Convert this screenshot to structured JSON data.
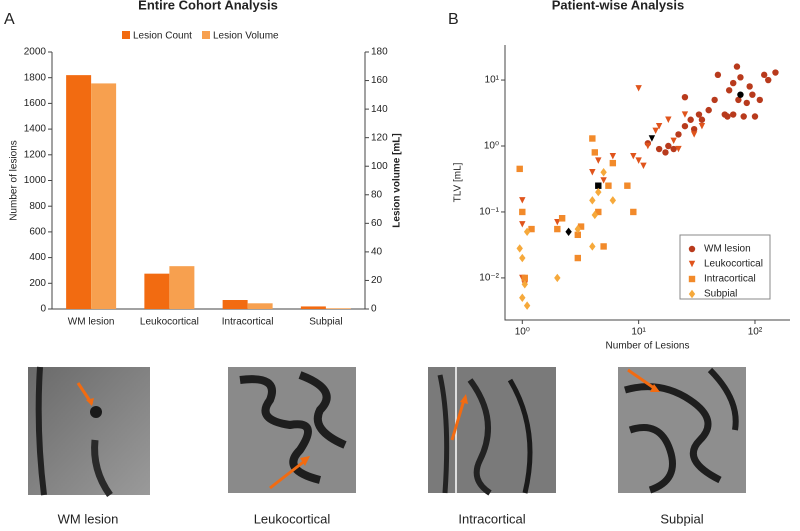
{
  "chart_data": [
    {
      "type": "bar",
      "panel_label": "A",
      "title": "Entire Cohort Analysis",
      "categories": [
        "WM lesion",
        "Leukocortical",
        "Intracortical",
        "Subpial"
      ],
      "series": [
        {
          "name": "Lesion Count",
          "color": "#f26b11",
          "values": [
            1820,
            275,
            70,
            20
          ]
        },
        {
          "name": "Lesion Volume",
          "color": "#f7a04f",
          "axis": "y2",
          "values": [
            158,
            30,
            4,
            0.5
          ]
        }
      ],
      "y_label": "Number of lesions",
      "y2_label": "Lesion volume [mL]",
      "ylim": [
        0,
        2000
      ],
      "yticks": [
        0,
        200,
        400,
        600,
        800,
        1000,
        1200,
        1400,
        1600,
        1800,
        2000
      ],
      "y2lim": [
        0,
        180
      ],
      "y2ticks": [
        0,
        20,
        40,
        60,
        80,
        100,
        120,
        140,
        160,
        180
      ],
      "legend": "upper center"
    },
    {
      "type": "scatter",
      "panel_label": "B",
      "title": "Patient-wise Analysis",
      "x_label": "Number of Lesions",
      "y_label": "TLV [mL]",
      "xscale": "log",
      "yscale": "log",
      "xlim": [
        0.71,
        200
      ],
      "ylim": [
        0.0023,
        34
      ],
      "xticks": [
        {
          "value": 1,
          "label": "10⁰"
        },
        {
          "value": 10,
          "label": "10¹"
        },
        {
          "value": 100,
          "label": "10²"
        }
      ],
      "yticks": [
        {
          "value": 0.01,
          "label": "10⁻²"
        },
        {
          "value": 0.1,
          "label": "10⁻¹"
        },
        {
          "value": 1,
          "label": "10⁰"
        },
        {
          "value": 10,
          "label": "10¹"
        }
      ],
      "legend": "lower right",
      "series": [
        {
          "name": "WM lesion",
          "color": "#b83a1c",
          "marker": "circle",
          "x": [
            12,
            15,
            17,
            18,
            20,
            22,
            25,
            28,
            30,
            33,
            35,
            40,
            45,
            48,
            55,
            58,
            60,
            65,
            70,
            72,
            75,
            80,
            85,
            90,
            95,
            100,
            110,
            120,
            130,
            150,
            65,
            25
          ],
          "y": [
            1.1,
            0.9,
            0.8,
            1.0,
            0.9,
            1.5,
            2,
            2.5,
            1.8,
            3,
            2.5,
            3.5,
            5,
            12,
            3,
            2.8,
            7,
            9,
            16,
            5,
            11,
            2.8,
            4.5,
            8,
            6,
            2.8,
            5,
            12,
            10,
            13,
            3,
            5.5
          ],
          "mean": {
            "x": 75,
            "y": 6
          }
        },
        {
          "name": "Leukocortical",
          "color": "#e0541c",
          "marker": "triangle",
          "x": [
            1,
            1,
            1,
            1.05,
            2,
            2.2,
            4,
            4.5,
            5,
            6,
            9,
            10,
            10,
            11,
            12,
            14,
            15,
            18,
            20,
            25,
            30,
            35,
            22
          ],
          "y": [
            0.15,
            0.065,
            0.01,
            0.008,
            0.07,
            0.08,
            0.4,
            0.6,
            0.3,
            0.7,
            0.7,
            7.5,
            0.6,
            0.5,
            1.0,
            1.7,
            2,
            2.5,
            1.2,
            3,
            1.5,
            2,
            0.9
          ],
          "mean": {
            "x": 13,
            "y": 1.3
          }
        },
        {
          "name": "Intracortical",
          "color": "#f28a2a",
          "marker": "square",
          "x": [
            0.95,
            1,
            1.05,
            1.2,
            2,
            2.2,
            3,
            3,
            3.2,
            4,
            4.2,
            4.5,
            5,
            5.5,
            6,
            8,
            9
          ],
          "y": [
            0.45,
            0.1,
            0.01,
            0.055,
            0.055,
            0.08,
            0.02,
            0.045,
            0.06,
            1.3,
            0.8,
            0.1,
            0.03,
            0.25,
            0.55,
            0.25,
            0.1
          ],
          "mean": {
            "x": 4.5,
            "y": 0.25
          }
        },
        {
          "name": "Subpial",
          "color": "#f6a93b",
          "marker": "diamond",
          "x": [
            0.95,
            1,
            1,
            1.05,
            1.1,
            1.1,
            2,
            3,
            4,
            4.2,
            4.5,
            5,
            6,
            4
          ],
          "y": [
            0.028,
            0.005,
            0.02,
            0.008,
            0.0038,
            0.05,
            0.01,
            0.055,
            0.03,
            0.09,
            0.2,
            0.4,
            0.15,
            0.15
          ],
          "mean": {
            "x": 2.5,
            "y": 0.05
          }
        }
      ]
    }
  ],
  "images": {
    "captions": [
      "WM lesion",
      "Leukocortical",
      "Intracortical",
      "Subpial"
    ]
  }
}
